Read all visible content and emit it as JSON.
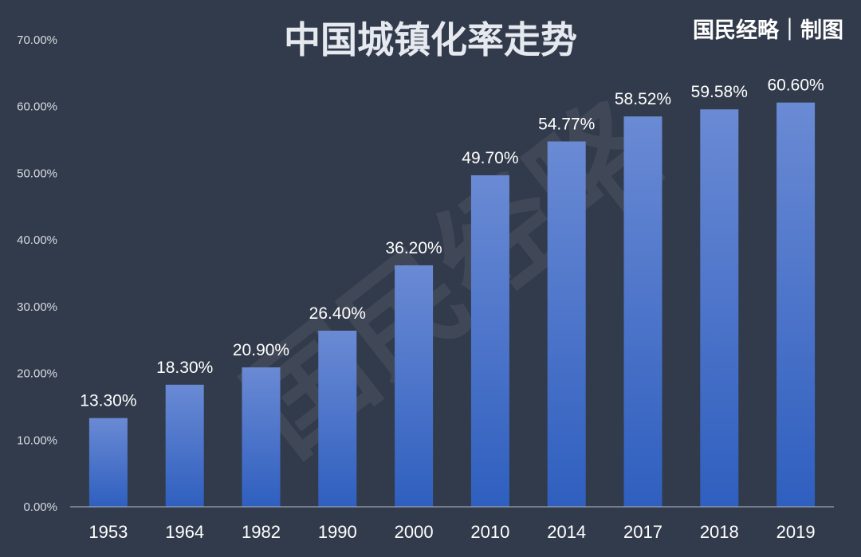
{
  "header": {
    "title": "中国城镇化率走势",
    "credit": "国民经略｜制图"
  },
  "watermark": "国民经略",
  "colors": {
    "background": "#323b4b",
    "bar_top": "#6a8ad4",
    "bar_bottom": "#2f5fbf",
    "axis": "#9aa3b2"
  },
  "chart_data": {
    "type": "bar",
    "title": "中国城镇化率走势",
    "xlabel": "",
    "ylabel": "",
    "categories": [
      "1953",
      "1964",
      "1982",
      "1990",
      "2000",
      "2010",
      "2014",
      "2017",
      "2018",
      "2019"
    ],
    "values": [
      13.3,
      18.3,
      20.9,
      26.4,
      36.2,
      49.7,
      54.77,
      58.52,
      59.58,
      60.6
    ],
    "data_labels": [
      "13.30%",
      "18.30%",
      "20.90%",
      "26.40%",
      "36.20%",
      "49.70%",
      "54.77%",
      "58.52%",
      "59.58%",
      "60.60%"
    ],
    "ylim": [
      0,
      70
    ],
    "yticks": [
      0,
      10,
      20,
      30,
      40,
      50,
      60,
      70
    ],
    "ytick_labels": [
      "0.00%",
      "10.00%",
      "20.00%",
      "30.00%",
      "40.00%",
      "50.00%",
      "60.00%",
      "70.00%"
    ],
    "grid": false,
    "legend": "none"
  }
}
